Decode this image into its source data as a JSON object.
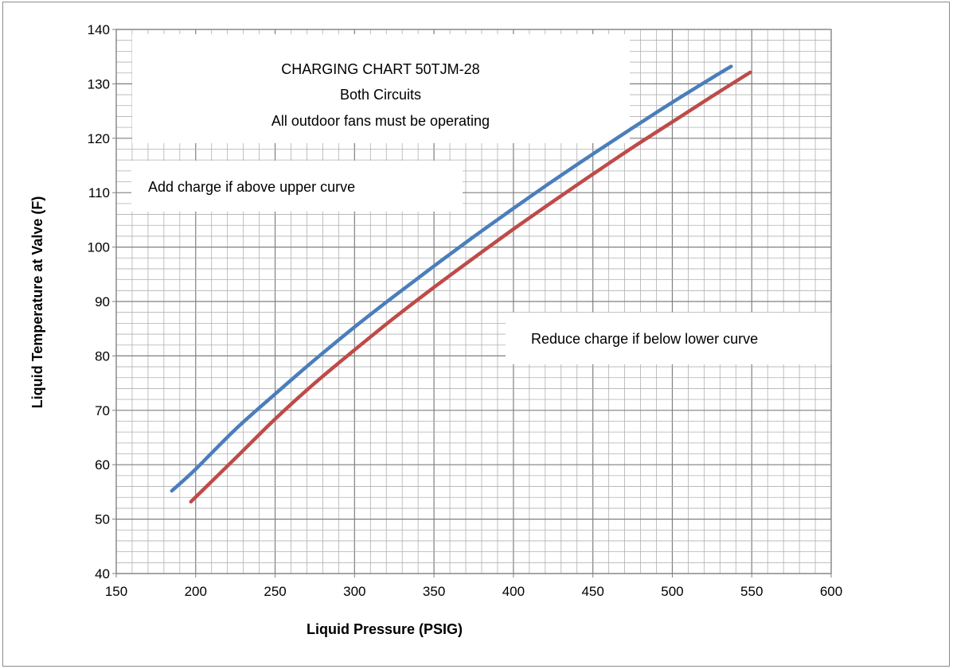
{
  "chart_data": {
    "type": "line",
    "title": [
      "CHARGING CHART 50TJM-28",
      "Both Circuits",
      "All outdoor fans must be operating"
    ],
    "xlabel": "Liquid Pressure (PSIG)",
    "ylabel": "Liquid  Temperature at Valve (F)",
    "xlim": [
      150,
      600
    ],
    "ylim": [
      40,
      140
    ],
    "x_ticks": [
      150,
      200,
      250,
      300,
      350,
      400,
      450,
      500,
      550,
      600
    ],
    "y_ticks": [
      40,
      50,
      60,
      70,
      80,
      90,
      100,
      110,
      120,
      130,
      140
    ],
    "minor_grid": {
      "x_step": 10,
      "y_step": 2
    },
    "grid": true,
    "annotations": {
      "above": "Add charge if above upper curve",
      "below": "Reduce charge if below  lower curve"
    },
    "series": [
      {
        "color": "#4a7ebb",
        "points": [
          [
            185,
            55.2
          ],
          [
            200,
            59.2
          ],
          [
            225,
            66.5
          ],
          [
            250,
            73.0
          ],
          [
            275,
            79.3
          ],
          [
            300,
            85.3
          ],
          [
            325,
            91.0
          ],
          [
            350,
            96.5
          ],
          [
            375,
            101.9
          ],
          [
            400,
            107.1
          ],
          [
            425,
            112.2
          ],
          [
            450,
            117.1
          ],
          [
            475,
            121.9
          ],
          [
            500,
            126.6
          ],
          [
            525,
            131.1
          ],
          [
            537,
            133.2
          ]
        ]
      },
      {
        "color": "#be4b48",
        "points": [
          [
            197,
            53.2
          ],
          [
            225,
            61.2
          ],
          [
            250,
            68.4
          ],
          [
            275,
            75.0
          ],
          [
            300,
            81.1
          ],
          [
            325,
            87.0
          ],
          [
            350,
            92.6
          ],
          [
            375,
            98.0
          ],
          [
            400,
            103.3
          ],
          [
            425,
            108.4
          ],
          [
            450,
            113.4
          ],
          [
            475,
            118.3
          ],
          [
            500,
            123.0
          ],
          [
            525,
            127.7
          ],
          [
            549,
            132.1
          ]
        ]
      }
    ],
    "colors": {
      "grid": "#b0b0b0",
      "axis": "#808080",
      "background": "#ffffff"
    }
  }
}
